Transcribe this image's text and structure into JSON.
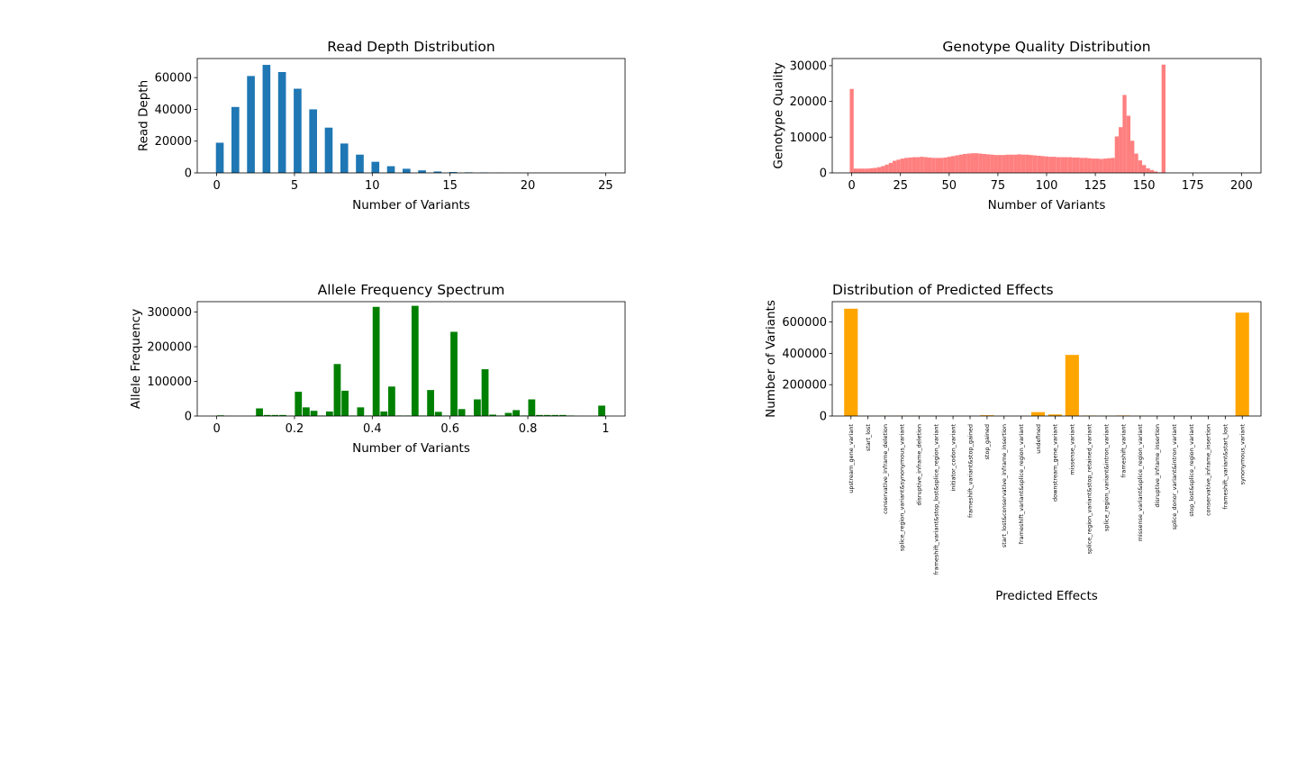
{
  "chart_data": [
    {
      "type": "bar",
      "title": "Read Depth Distribution",
      "xlabel": "Number of Variants",
      "ylabel": "Read Depth",
      "color": "#1f77b4",
      "xlim": [
        -1.25,
        26.25
      ],
      "ylim": [
        0,
        72000
      ],
      "xticks": [
        0,
        5,
        10,
        15,
        20,
        25
      ],
      "yticks": [
        0,
        20000,
        40000,
        60000
      ],
      "bar_width": 0.5,
      "x": [
        0.2,
        1.2,
        2.2,
        3.2,
        4.2,
        5.2,
        6.2,
        7.2,
        8.2,
        9.2,
        10.2,
        11.2,
        12.2,
        13.2,
        14.2,
        15.2,
        16.2,
        17.2,
        18.2,
        19.2
      ],
      "values": [
        19000,
        41500,
        61000,
        68000,
        63500,
        53000,
        40000,
        28500,
        18500,
        11500,
        7000,
        4200,
        2600,
        1600,
        900,
        550,
        350,
        250,
        120,
        60
      ]
    },
    {
      "type": "bar",
      "title": "Genotype Quality Distribution",
      "xlabel": "Number of Variants",
      "ylabel": "Genotype Quality",
      "color": "#ff7f7f",
      "xlim": [
        -10,
        210
      ],
      "ylim": [
        0,
        32000
      ],
      "xticks": [
        0,
        25,
        50,
        75,
        100,
        125,
        150,
        175,
        200
      ],
      "yticks": [
        0,
        10000,
        20000,
        30000
      ],
      "bar_width": 2,
      "x": [
        0,
        2,
        4,
        6,
        8,
        10,
        12,
        14,
        16,
        18,
        20,
        22,
        24,
        26,
        28,
        30,
        32,
        34,
        36,
        38,
        40,
        42,
        44,
        46,
        48,
        50,
        52,
        54,
        56,
        58,
        60,
        62,
        64,
        66,
        68,
        70,
        72,
        74,
        76,
        78,
        80,
        82,
        84,
        86,
        88,
        90,
        92,
        94,
        96,
        98,
        100,
        102,
        104,
        106,
        108,
        110,
        112,
        114,
        116,
        118,
        120,
        122,
        124,
        126,
        128,
        130,
        132,
        134,
        136,
        138,
        140,
        142,
        144,
        146,
        148,
        150,
        152,
        154,
        156,
        158,
        160
      ],
      "values": [
        23500,
        1200,
        1200,
        1200,
        1200,
        1300,
        1400,
        1600,
        1900,
        2300,
        2800,
        3400,
        3700,
        4000,
        4200,
        4300,
        4400,
        4400,
        4500,
        4400,
        4300,
        4200,
        4200,
        4200,
        4300,
        4500,
        4700,
        4900,
        5100,
        5300,
        5400,
        5500,
        5500,
        5400,
        5300,
        5200,
        5100,
        5000,
        5000,
        5000,
        5100,
        5100,
        5100,
        5200,
        5100,
        5100,
        5000,
        4900,
        4800,
        4700,
        4600,
        4500,
        4500,
        4400,
        4400,
        4400,
        4400,
        4300,
        4300,
        4200,
        4200,
        4100,
        4000,
        4000,
        3900,
        4000,
        4100,
        4200,
        10200,
        12800,
        21800,
        16000,
        9000,
        5400,
        3500,
        2200,
        1300,
        800,
        400,
        150,
        30300
      ]
    },
    {
      "type": "bar",
      "title": "Allele Frequency Spectrum",
      "xlabel": "Number of Variants",
      "ylabel": "Allele Frequency",
      "color": "#008000",
      "xlim": [
        -0.05,
        1.05
      ],
      "ylim": [
        0,
        330000
      ],
      "xticks": [
        0.0,
        0.2,
        0.4,
        0.6,
        0.8,
        1.0
      ],
      "yticks": [
        0,
        100000,
        200000,
        300000
      ],
      "bar_width": 0.018,
      "x": [
        0.01,
        0.03,
        0.05,
        0.07,
        0.09,
        0.11,
        0.13,
        0.15,
        0.17,
        0.19,
        0.21,
        0.23,
        0.25,
        0.27,
        0.29,
        0.31,
        0.33,
        0.35,
        0.37,
        0.39,
        0.41,
        0.43,
        0.45,
        0.47,
        0.49,
        0.51,
        0.53,
        0.55,
        0.57,
        0.59,
        0.61,
        0.63,
        0.65,
        0.67,
        0.69,
        0.71,
        0.73,
        0.75,
        0.77,
        0.79,
        0.81,
        0.83,
        0.85,
        0.87,
        0.89,
        0.91,
        0.93,
        0.95,
        0.97,
        0.99
      ],
      "values": [
        2000,
        500,
        400,
        400,
        400,
        22000,
        3000,
        3000,
        3000,
        1000,
        70000,
        25000,
        15000,
        1500,
        13000,
        150000,
        73000,
        1500,
        25000,
        1500,
        315000,
        13000,
        85000,
        1500,
        1500,
        318000,
        1500,
        75000,
        12000,
        1500,
        243000,
        20000,
        1500,
        48000,
        135000,
        4000,
        1500,
        9000,
        17000,
        1500,
        48000,
        3000,
        3000,
        3000,
        3000,
        1500,
        500,
        400,
        400,
        30000
      ]
    },
    {
      "type": "bar",
      "title": "Distribution of Predicted Effects",
      "xlabel": "Predicted Effects",
      "ylabel": "Number of Variants",
      "color": "#ffa500",
      "ylim": [
        0,
        730000
      ],
      "yticks": [
        0,
        200000,
        400000,
        600000
      ],
      "categories": [
        "upstream_gene_variant",
        "start_lost",
        "conservative_inframe_deletion",
        "splice_region_variant&synonymous_variant",
        "disruptive_inframe_deletion",
        "frameshift_variant&stop_lost&splice_region_variant",
        "initiator_codon_variant",
        "frameshift_variant&stop_gained",
        "stop_gained",
        "start_lost&conservative_inframe_insertion",
        "frameshift_variant&splice_region_variant",
        "undefined",
        "downstream_gene_variant",
        "missense_variant",
        "splice_region_variant&stop_retained_variant",
        "splice_region_variant&intron_variant",
        "frameshift_variant",
        "missense_variant&splice_region_variant",
        "disruptive_inframe_insertion",
        "splice_donor_variant&intron_variant",
        "stop_lost&splice_region_variant",
        "conservative_inframe_insertion",
        "frameshift_variant&start_lost",
        "synonymous_variant"
      ],
      "values": [
        685000,
        300,
        1000,
        1500,
        800,
        200,
        200,
        300,
        5000,
        200,
        300,
        25000,
        10000,
        390000,
        3000,
        1200,
        3500,
        1000,
        300,
        200,
        200,
        300,
        200,
        660000
      ]
    }
  ]
}
